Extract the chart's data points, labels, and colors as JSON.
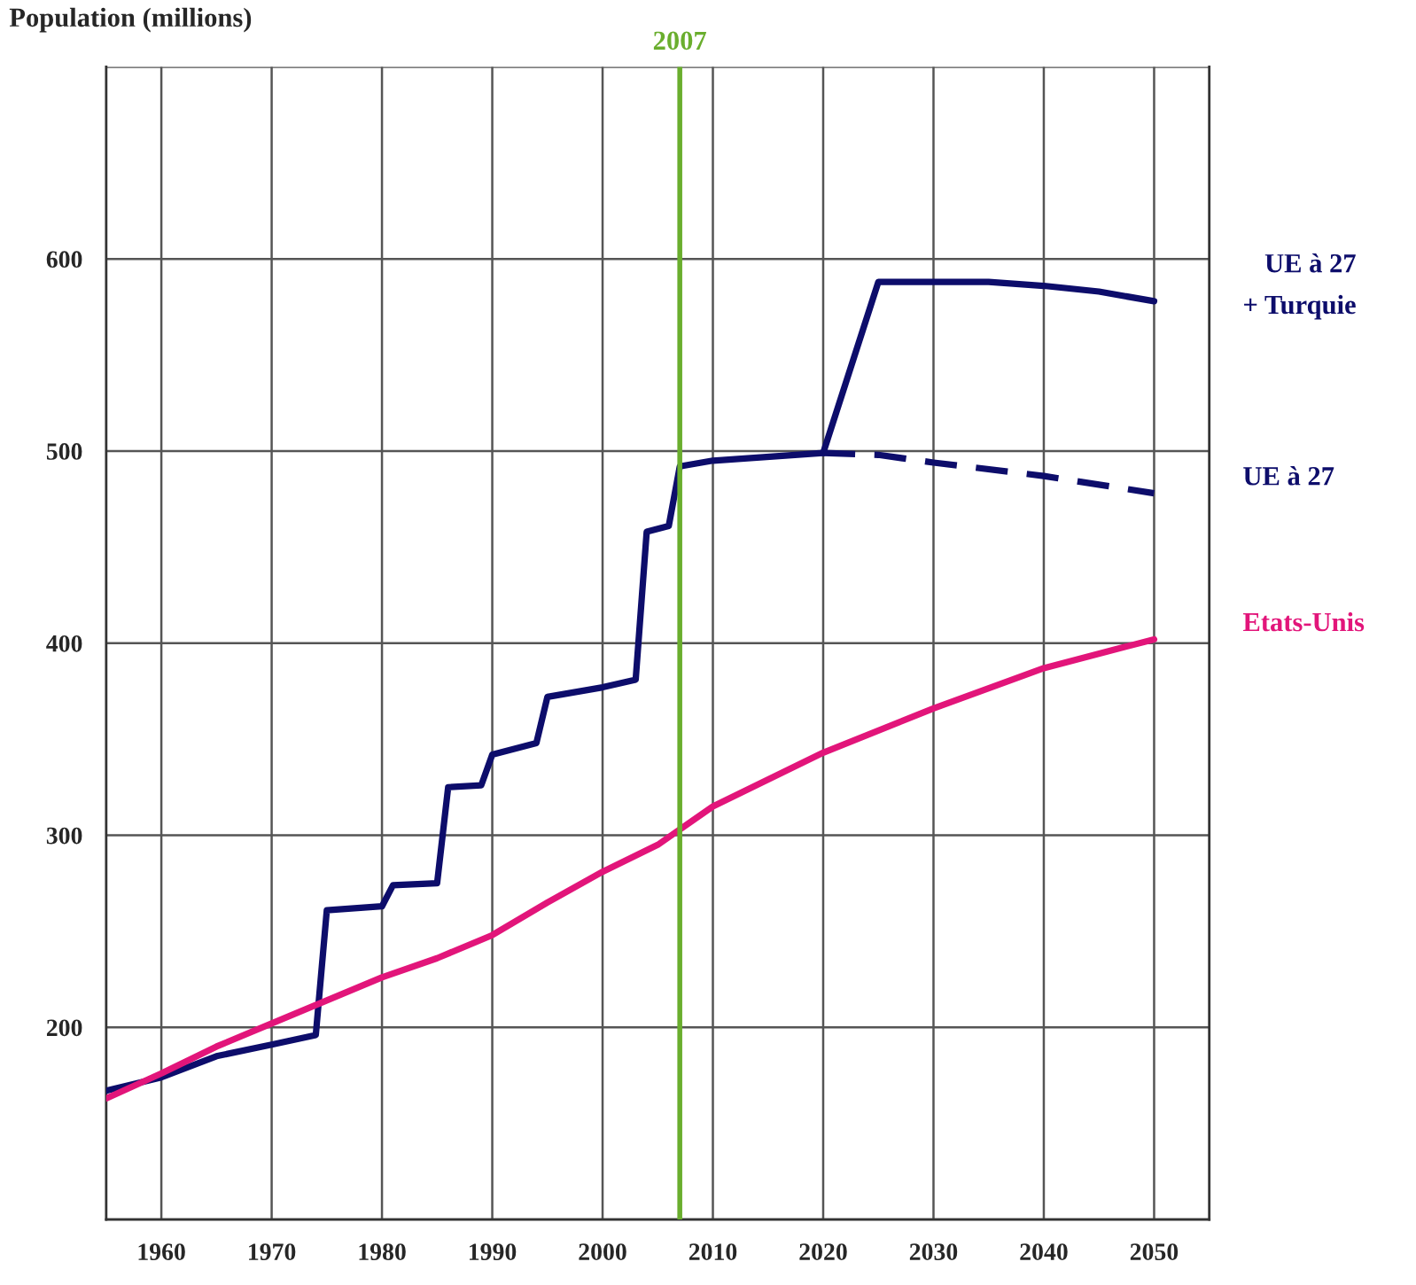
{
  "chart_data": {
    "type": "line",
    "ylabel": "Population (millions)",
    "xlim": [
      1955,
      2055
    ],
    "ylim": [
      100,
      700
    ],
    "xticks": [
      1960,
      1970,
      1980,
      1990,
      2000,
      2010,
      2020,
      2030,
      2040,
      2050
    ],
    "yticks": [
      {
        "value": 100,
        "label": null
      },
      200,
      300,
      400,
      500,
      600,
      {
        "value": 700,
        "label": null
      }
    ],
    "grid": true,
    "legend": false,
    "marker": "none",
    "ref_lines": [
      {
        "axis": "x",
        "value": 2007,
        "label": "2007",
        "color": "#6aae2e"
      }
    ],
    "series": [
      {
        "color": "#0d0d6b",
        "line_style": "solid",
        "x": [
          1955,
          1960,
          1965,
          1970,
          1974,
          1975,
          1980,
          1981,
          1985,
          1986,
          1989,
          1990,
          1994,
          1995,
          2000,
          2003,
          2004,
          2006,
          2007,
          2010,
          2020
        ],
        "values": [
          167,
          174,
          185,
          191,
          196,
          261,
          263,
          274,
          275,
          325,
          326,
          342,
          348,
          372,
          377,
          381,
          458,
          461,
          492,
          495,
          499
        ]
      },
      {
        "name": "UE à 27\n+ Turquie",
        "color": "#0d0d6b",
        "line_style": "solid",
        "x": [
          2020,
          2025,
          2030,
          2035,
          2040,
          2045,
          2050
        ],
        "values": [
          499,
          588,
          588,
          588,
          586,
          583,
          578
        ]
      },
      {
        "name": "UE à 27",
        "color": "#0d0d6b",
        "line_style": "dashed",
        "x": [
          2020,
          2025,
          2030,
          2040,
          2050
        ],
        "values": [
          499,
          498,
          494,
          487,
          478
        ]
      },
      {
        "name": "Etats-Unis",
        "color": "#e2157a",
        "line_style": "solid",
        "x": [
          1955,
          1960,
          1965,
          1970,
          1975,
          1980,
          1985,
          1990,
          1995,
          2000,
          2005,
          2007,
          2010,
          2020,
          2030,
          2040,
          2050
        ],
        "values": [
          163,
          176,
          190,
          202,
          214,
          226,
          236,
          248,
          265,
          281,
          295,
          303,
          315,
          343,
          366,
          387,
          402
        ]
      }
    ]
  }
}
